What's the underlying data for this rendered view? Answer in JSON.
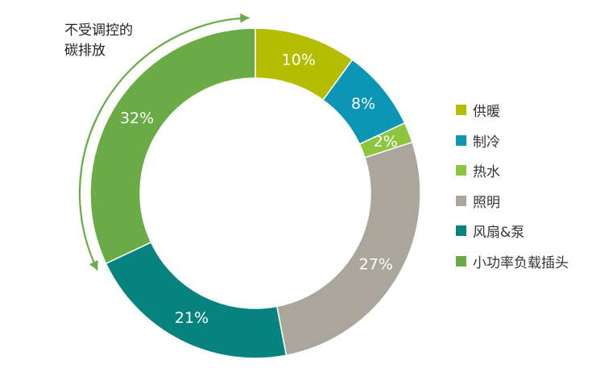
{
  "chart_data": {
    "type": "pie",
    "subtype": "donut",
    "title": "",
    "categories": [
      "供暖",
      "制冷",
      "热水",
      "照明",
      "风扇&泵",
      "小功率负载插头"
    ],
    "values": [
      10,
      8,
      2,
      27,
      21,
      32
    ],
    "value_labels": [
      "10%",
      "8%",
      "2%",
      "27%",
      "21%",
      "32%"
    ],
    "colors": [
      "#b5bd00",
      "#0a96b4",
      "#8cc63f",
      "#aba69c",
      "#06837f",
      "#6aab45"
    ],
    "start_angle_deg": 0,
    "direction": "clockwise",
    "legend_position": "right",
    "annotation": "不受调控的\n碳排放",
    "annotation_arrow_color": "#6aab45"
  }
}
